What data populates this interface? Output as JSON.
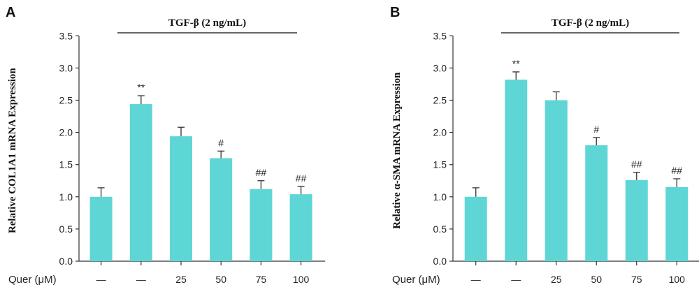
{
  "x_row_label": "Quer (μM)",
  "treatment_label": "TGF-β (2 ng/mL)",
  "colors": {
    "bar": "#5ed6d6",
    "axis": "#333333",
    "text": "#222222"
  },
  "chart_data": [
    {
      "type": "bar",
      "panel": "A",
      "ylabel": "Relative COL1A1 mRNA Expression",
      "categories": [
        "—",
        "—",
        "25",
        "50",
        "75",
        "100"
      ],
      "values": [
        1.0,
        2.44,
        1.94,
        1.6,
        1.12,
        1.04
      ],
      "errors": [
        0.14,
        0.13,
        0.14,
        0.11,
        0.13,
        0.12
      ],
      "significance": [
        "",
        "**",
        "",
        "#",
        "##",
        "##"
      ],
      "ylim": [
        0,
        3.5
      ],
      "yticks": [
        "0.0",
        "0.5",
        "1.0",
        "1.5",
        "2.0",
        "2.5",
        "3.0",
        "3.5"
      ],
      "grid": false
    },
    {
      "type": "bar",
      "panel": "B",
      "ylabel": "Relative α-SMA mRNA Expression",
      "categories": [
        "—",
        "—",
        "25",
        "50",
        "75",
        "100"
      ],
      "values": [
        1.0,
        2.82,
        2.5,
        1.8,
        1.26,
        1.15
      ],
      "errors": [
        0.14,
        0.12,
        0.13,
        0.12,
        0.12,
        0.13
      ],
      "significance": [
        "",
        "**",
        "",
        "#",
        "##",
        "##"
      ],
      "ylim": [
        0,
        3.5
      ],
      "yticks": [
        "0.0",
        "0.5",
        "1.0",
        "1.5",
        "2.0",
        "2.5",
        "3.0",
        "3.5"
      ],
      "grid": false
    }
  ]
}
